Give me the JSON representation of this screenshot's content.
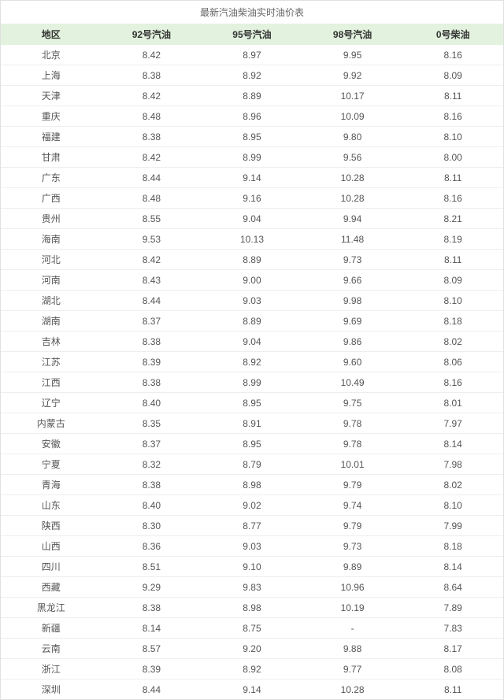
{
  "title": "最新汽油柴油实时油价表",
  "table": {
    "columns": [
      "地区",
      "92号汽油",
      "95号汽油",
      "98号汽油",
      "0号柴油"
    ],
    "rows": [
      [
        "北京",
        "8.42",
        "8.97",
        "9.95",
        "8.16"
      ],
      [
        "上海",
        "8.38",
        "8.92",
        "9.92",
        "8.09"
      ],
      [
        "天津",
        "8.42",
        "8.89",
        "10.17",
        "8.11"
      ],
      [
        "重庆",
        "8.48",
        "8.96",
        "10.09",
        "8.16"
      ],
      [
        "福建",
        "8.38",
        "8.95",
        "9.80",
        "8.10"
      ],
      [
        "甘肃",
        "8.42",
        "8.99",
        "9.56",
        "8.00"
      ],
      [
        "广东",
        "8.44",
        "9.14",
        "10.28",
        "8.11"
      ],
      [
        "广西",
        "8.48",
        "9.16",
        "10.28",
        "8.16"
      ],
      [
        "贵州",
        "8.55",
        "9.04",
        "9.94",
        "8.21"
      ],
      [
        "海南",
        "9.53",
        "10.13",
        "11.48",
        "8.19"
      ],
      [
        "河北",
        "8.42",
        "8.89",
        "9.73",
        "8.11"
      ],
      [
        "河南",
        "8.43",
        "9.00",
        "9.66",
        "8.09"
      ],
      [
        "湖北",
        "8.44",
        "9.03",
        "9.98",
        "8.10"
      ],
      [
        "湖南",
        "8.37",
        "8.89",
        "9.69",
        "8.18"
      ],
      [
        "吉林",
        "8.38",
        "9.04",
        "9.86",
        "8.02"
      ],
      [
        "江苏",
        "8.39",
        "8.92",
        "9.60",
        "8.06"
      ],
      [
        "江西",
        "8.38",
        "8.99",
        "10.49",
        "8.16"
      ],
      [
        "辽宁",
        "8.40",
        "8.95",
        "9.75",
        "8.01"
      ],
      [
        "内蒙古",
        "8.35",
        "8.91",
        "9.78",
        "7.97"
      ],
      [
        "安徽",
        "8.37",
        "8.95",
        "9.78",
        "8.14"
      ],
      [
        "宁夏",
        "8.32",
        "8.79",
        "10.01",
        "7.98"
      ],
      [
        "青海",
        "8.38",
        "8.98",
        "9.79",
        "8.02"
      ],
      [
        "山东",
        "8.40",
        "9.02",
        "9.74",
        "8.10"
      ],
      [
        "陕西",
        "8.30",
        "8.77",
        "9.79",
        "7.99"
      ],
      [
        "山西",
        "8.36",
        "9.03",
        "9.73",
        "8.18"
      ],
      [
        "四川",
        "8.51",
        "9.10",
        "9.89",
        "8.14"
      ],
      [
        "西藏",
        "9.29",
        "9.83",
        "10.96",
        "8.64"
      ],
      [
        "黑龙江",
        "8.38",
        "8.98",
        "10.19",
        "7.89"
      ],
      [
        "新疆",
        "8.14",
        "8.75",
        "-",
        "7.83"
      ],
      [
        "云南",
        "8.57",
        "9.20",
        "9.88",
        "8.17"
      ],
      [
        "浙江",
        "8.39",
        "8.92",
        "9.77",
        "8.08"
      ],
      [
        "深圳",
        "8.44",
        "9.14",
        "10.28",
        "8.11"
      ]
    ],
    "header_bg": "#e2f2de",
    "border_color": "#e0e0e0",
    "row_border": "#eeeeee",
    "text_color": "#555555",
    "title_color": "#666666",
    "fontsize": 12
  }
}
